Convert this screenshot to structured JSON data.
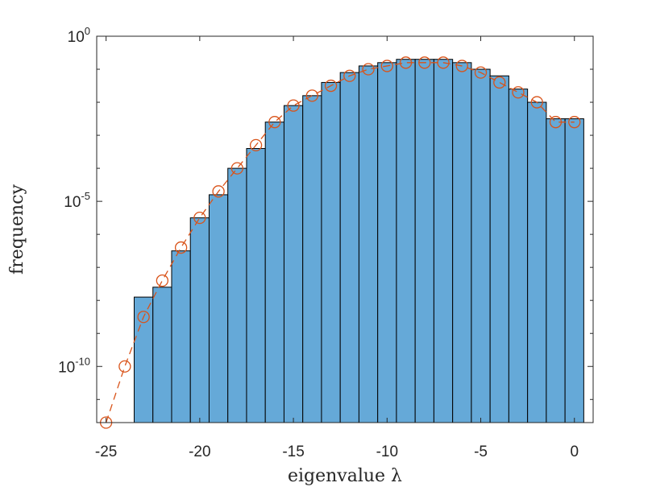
{
  "chart_data": {
    "type": "bar",
    "title": "",
    "xlabel": "eigenvalue λ",
    "ylabel": "frequency",
    "xlim": [
      -25.5,
      1.0
    ],
    "ylim_log10": [
      -11.7,
      0
    ],
    "yscale": "log",
    "grid": false,
    "legend": "none",
    "x_ticks": [
      -25,
      -20,
      -15,
      -10,
      -5,
      0
    ],
    "x_tick_labels": [
      "-25",
      "-20",
      "-15",
      "-10",
      "-5",
      "0"
    ],
    "y_ticks_log10": [
      0,
      -5,
      -10
    ],
    "y_tick_labels": [
      {
        "base": "10",
        "exp": "0"
      },
      {
        "base": "10",
        "exp": "-5"
      },
      {
        "base": "10",
        "exp": "-10"
      }
    ],
    "series": [
      {
        "type": "histogram",
        "bin_width": 1,
        "bin_centers": [
          -23,
          -22,
          -21,
          -20,
          -19,
          -18,
          -17,
          -16,
          -15,
          -14,
          -13,
          -12,
          -11,
          -10,
          -9,
          -8,
          -7,
          -6,
          -5,
          -4,
          -3,
          -2,
          -1,
          0
        ],
        "log10_values": [
          -7.9,
          -7.6,
          -6.5,
          -5.5,
          -4.8,
          -4.0,
          -3.4,
          -2.6,
          -2.1,
          -1.8,
          -1.4,
          -1.1,
          -0.9,
          -0.8,
          -0.7,
          -0.7,
          -0.7,
          -0.8,
          -1.0,
          -1.2,
          -1.6,
          -2.0,
          -2.5,
          -2.5
        ],
        "color": "#65a9d8",
        "edge_color": "#000000"
      },
      {
        "type": "line",
        "style": "dashed",
        "marker": "circle-open",
        "x": [
          -25,
          -24,
          -23,
          -22,
          -21,
          -20,
          -19,
          -18,
          -17,
          -16,
          -15,
          -14,
          -13,
          -12,
          -11,
          -10,
          -9,
          -8,
          -7,
          -6,
          -5,
          -4,
          -3,
          -2,
          -1,
          0
        ],
        "log10_values": [
          -11.7,
          -10.0,
          -8.5,
          -7.4,
          -6.4,
          -5.5,
          -4.7,
          -4.0,
          -3.3,
          -2.6,
          -2.1,
          -1.8,
          -1.5,
          -1.2,
          -1.0,
          -0.9,
          -0.8,
          -0.8,
          -0.8,
          -0.9,
          -1.1,
          -1.4,
          -1.7,
          -2.0,
          -2.6,
          -2.6
        ],
        "color": "#d95319"
      }
    ]
  }
}
